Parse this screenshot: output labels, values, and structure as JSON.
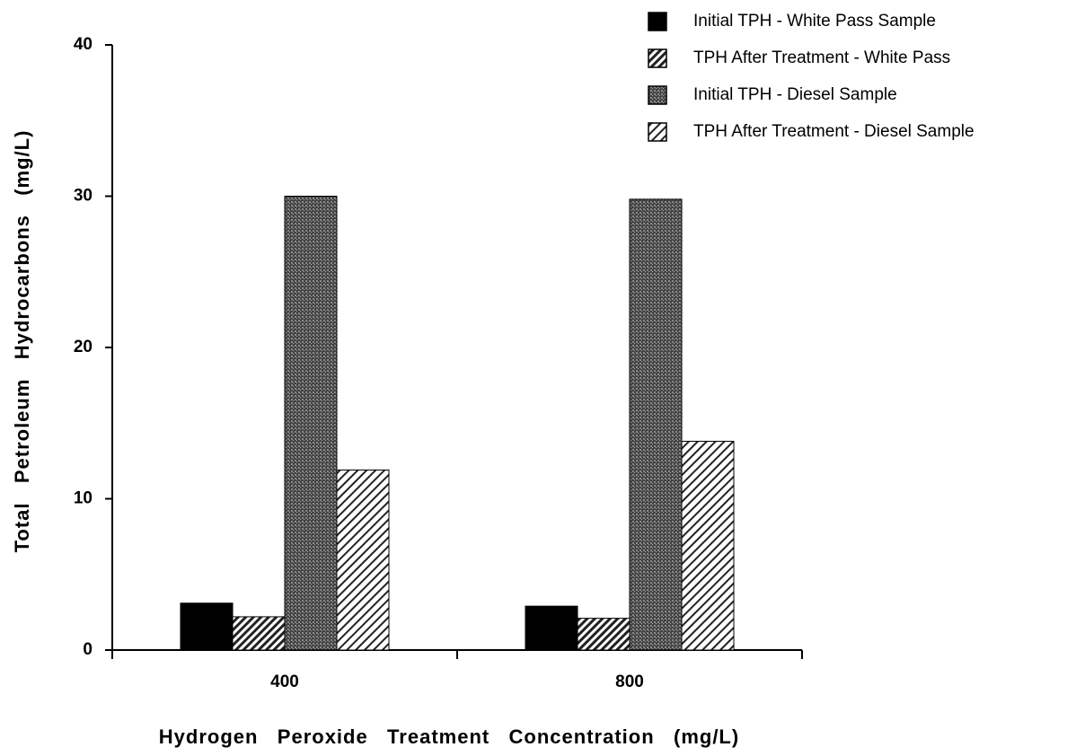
{
  "chart_data": {
    "type": "bar",
    "xlabel": "Hydrogen   Peroxide   Treatment   Concentration   (mg/L)",
    "ylabel": "Total   Petroleum   Hydrocarbons   (mg/L)",
    "categories": [
      "400",
      "800"
    ],
    "series": [
      {
        "name": "Initial TPH - White Pass Sample",
        "color": "#000000",
        "pattern": "solid",
        "values": [
          3.1,
          2.9
        ]
      },
      {
        "name": "TPH After Treatment - White Pass",
        "color": "#222222",
        "pattern": "hatch",
        "values": [
          2.2,
          2.1
        ]
      },
      {
        "name": "Initial TPH - Diesel Sample",
        "color": "#555555",
        "pattern": "dots",
        "values": [
          30,
          29.8
        ]
      },
      {
        "name": "TPH After Treatment - Diesel Sample",
        "color": "#222222",
        "pattern": "hatch-light",
        "values": [
          11.9,
          13.8
        ]
      }
    ],
    "ylim": [
      0,
      40
    ],
    "yticks": [
      0,
      10,
      20,
      30,
      40
    ],
    "grid": false,
    "legend": "upper right"
  }
}
